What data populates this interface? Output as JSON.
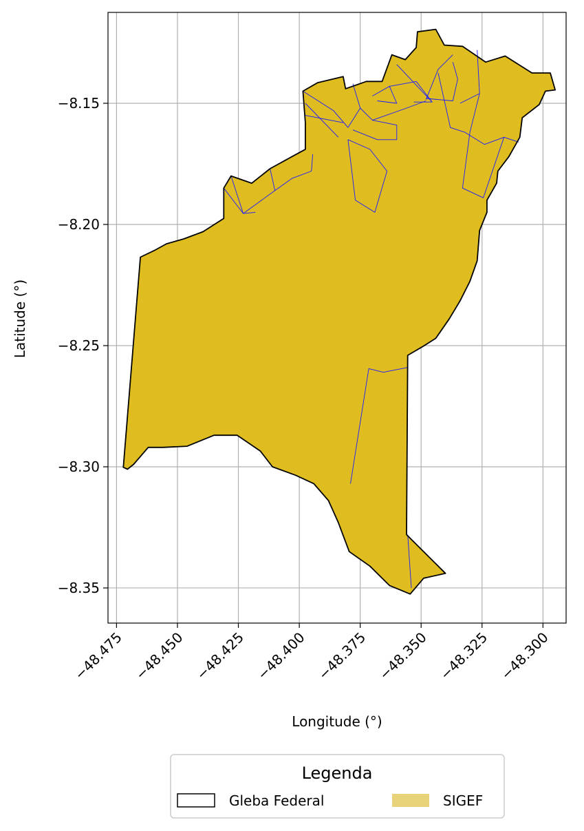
{
  "axes": {
    "xlabel": "Longitude (°)",
    "ylabel": "Latitude (°)",
    "xlim": [
      -48.4785,
      -48.2905
    ],
    "ylim": [
      -8.3645,
      -8.1125
    ],
    "xticks": [
      -48.475,
      -48.45,
      -48.425,
      -48.4,
      -48.375,
      -48.35,
      -48.325,
      -48.3
    ],
    "xtick_labels": [
      "−48.475",
      "−48.450",
      "−48.425",
      "−48.400",
      "−48.375",
      "−48.350",
      "−48.325",
      "−48.300"
    ],
    "yticks": [
      -8.15,
      -8.2,
      -8.25,
      -8.3,
      -8.35
    ],
    "ytick_labels": [
      "−8.15",
      "−8.20",
      "−8.25",
      "−8.30",
      "−8.35"
    ],
    "grid": true
  },
  "legend": {
    "title": "Legenda",
    "placement": "bottom-center",
    "entries": [
      {
        "label": "Gleba Federal",
        "style": "outline",
        "color": "#000000"
      },
      {
        "label": "SIGEF",
        "style": "fill",
        "color": "#e8d27a"
      }
    ]
  },
  "colors": {
    "sigef_fill": "#dfbd20",
    "parcel_lines": "#1a1aff",
    "gleba_outline": "#000000",
    "grid": "#b0b0b0"
  },
  "map_data": {
    "gleba_outline": [
      [
        -48.4652,
        -8.2135
      ],
      [
        -48.459,
        -8.2105
      ],
      [
        -48.4545,
        -8.208
      ],
      [
        -48.4475,
        -8.206
      ],
      [
        -48.4395,
        -8.203
      ],
      [
        -48.431,
        -8.1975
      ],
      [
        -48.431,
        -8.185
      ],
      [
        -48.428,
        -8.18
      ],
      [
        -48.4195,
        -8.183
      ],
      [
        -48.412,
        -8.177
      ],
      [
        -48.403,
        -8.172
      ],
      [
        -48.3975,
        -8.169
      ],
      [
        -48.3975,
        -8.158
      ],
      [
        -48.3985,
        -8.145
      ],
      [
        -48.3925,
        -8.1415
      ],
      [
        -48.382,
        -8.139
      ],
      [
        -48.381,
        -8.144
      ],
      [
        -48.3725,
        -8.141
      ],
      [
        -48.366,
        -8.141
      ],
      [
        -48.362,
        -8.13
      ],
      [
        -48.3565,
        -8.132
      ],
      [
        -48.352,
        -8.127
      ],
      [
        -48.3515,
        -8.1205
      ],
      [
        -48.344,
        -8.1195
      ],
      [
        -48.3405,
        -8.126
      ],
      [
        -48.333,
        -8.1265
      ],
      [
        -48.3235,
        -8.133
      ],
      [
        -48.3155,
        -8.1305
      ],
      [
        -48.3045,
        -8.1375
      ],
      [
        -48.297,
        -8.1375
      ],
      [
        -48.295,
        -8.1445
      ],
      [
        -48.299,
        -8.145
      ],
      [
        -48.3015,
        -8.1505
      ],
      [
        -48.3085,
        -8.156
      ],
      [
        -48.3095,
        -8.164
      ],
      [
        -48.314,
        -8.172
      ],
      [
        -48.3185,
        -8.178
      ],
      [
        -48.319,
        -8.183
      ],
      [
        -48.323,
        -8.19
      ],
      [
        -48.323,
        -8.195
      ],
      [
        -48.326,
        -8.2025
      ],
      [
        -48.327,
        -8.215
      ],
      [
        -48.33,
        -8.2235
      ],
      [
        -48.334,
        -8.2315
      ],
      [
        -48.3385,
        -8.239
      ],
      [
        -48.344,
        -8.247
      ],
      [
        -48.3495,
        -8.2505
      ],
      [
        -48.3555,
        -8.254
      ],
      [
        -48.356,
        -8.328
      ],
      [
        -48.34,
        -8.344
      ],
      [
        -48.349,
        -8.346
      ],
      [
        -48.3545,
        -8.3525
      ],
      [
        -48.363,
        -8.349
      ],
      [
        -48.371,
        -8.341
      ],
      [
        -48.3795,
        -8.335
      ],
      [
        -48.384,
        -8.323
      ],
      [
        -48.388,
        -8.314
      ],
      [
        -48.394,
        -8.307
      ],
      [
        -48.4015,
        -8.3035
      ],
      [
        -48.411,
        -8.3
      ],
      [
        -48.416,
        -8.2935
      ],
      [
        -48.4255,
        -8.287
      ],
      [
        -48.435,
        -8.287
      ],
      [
        -48.446,
        -8.2915
      ],
      [
        -48.456,
        -8.292
      ],
      [
        -48.462,
        -8.292
      ],
      [
        -48.468,
        -8.299
      ],
      [
        -48.4705,
        -8.301
      ],
      [
        -48.4722,
        -8.3002
      ],
      [
        -48.4652,
        -8.2135
      ]
    ],
    "parcel_lines": [
      [
        [
          -48.428,
          -8.18
        ],
        [
          -48.423,
          -8.1955
        ],
        [
          -48.418,
          -8.195
        ]
      ],
      [
        [
          -48.431,
          -8.185
        ],
        [
          -48.423,
          -8.1955
        ]
      ],
      [
        [
          -48.423,
          -8.1955
        ],
        [
          -48.41,
          -8.186
        ],
        [
          -48.403,
          -8.181
        ],
        [
          -48.395,
          -8.178
        ]
      ],
      [
        [
          -48.412,
          -8.177
        ],
        [
          -48.41,
          -8.186
        ]
      ],
      [
        [
          -48.395,
          -8.178
        ],
        [
          -48.3945,
          -8.171
        ]
      ],
      [
        [
          -48.3985,
          -8.145
        ],
        [
          -48.386,
          -8.153
        ],
        [
          -48.38,
          -8.16
        ]
      ],
      [
        [
          -48.3975,
          -8.155
        ],
        [
          -48.382,
          -8.158
        ]
      ],
      [
        [
          -48.3975,
          -8.15
        ],
        [
          -48.384,
          -8.164
        ]
      ],
      [
        [
          -48.38,
          -8.16
        ],
        [
          -48.375,
          -8.152
        ],
        [
          -48.378,
          -8.142
        ]
      ],
      [
        [
          -48.375,
          -8.152
        ],
        [
          -48.37,
          -8.157
        ],
        [
          -48.36,
          -8.159
        ],
        [
          -48.36,
          -8.165
        ],
        [
          -48.368,
          -8.165
        ],
        [
          -48.378,
          -8.161
        ]
      ],
      [
        [
          -48.37,
          -8.147
        ],
        [
          -48.363,
          -8.143
        ],
        [
          -48.36,
          -8.15
        ],
        [
          -48.368,
          -8.149
        ]
      ],
      [
        [
          -48.363,
          -8.143
        ],
        [
          -48.352,
          -8.141
        ],
        [
          -48.3455,
          -8.1495
        ],
        [
          -48.353,
          -8.1495
        ]
      ],
      [
        [
          -48.37,
          -8.157
        ],
        [
          -48.356,
          -8.152
        ],
        [
          -48.348,
          -8.149
        ]
      ],
      [
        [
          -48.36,
          -8.134
        ],
        [
          -48.3455,
          -8.1495
        ]
      ],
      [
        [
          -48.348,
          -8.1485
        ],
        [
          -48.343,
          -8.136
        ],
        [
          -48.337,
          -8.13
        ]
      ],
      [
        [
          -48.343,
          -8.1375
        ],
        [
          -48.338,
          -8.16
        ],
        [
          -48.332,
          -8.162
        ],
        [
          -48.324,
          -8.167
        ],
        [
          -48.316,
          -8.164
        ],
        [
          -48.31,
          -8.166
        ]
      ],
      [
        [
          -48.348,
          -8.148
        ],
        [
          -48.337,
          -8.149
        ],
        [
          -48.335,
          -8.14
        ],
        [
          -48.337,
          -8.133
        ]
      ],
      [
        [
          -48.327,
          -8.128
        ],
        [
          -48.326,
          -8.146
        ],
        [
          -48.334,
          -8.15
        ]
      ],
      [
        [
          -48.326,
          -8.146
        ],
        [
          -48.33,
          -8.162
        ],
        [
          -48.333,
          -8.185
        ],
        [
          -48.3245,
          -8.189
        ]
      ],
      [
        [
          -48.316,
          -8.164
        ],
        [
          -48.3245,
          -8.189
        ]
      ],
      [
        [
          -48.38,
          -8.165
        ],
        [
          -48.377,
          -8.19
        ],
        [
          -48.369,
          -8.195
        ],
        [
          -48.364,
          -8.178
        ],
        [
          -48.371,
          -8.169
        ],
        [
          -48.38,
          -8.165
        ]
      ],
      [
        [
          -48.3715,
          -8.2595
        ],
        [
          -48.3655,
          -8.261
        ],
        [
          -48.3555,
          -8.259
        ]
      ],
      [
        [
          -48.3715,
          -8.2595
        ],
        [
          -48.379,
          -8.307
        ]
      ],
      [
        [
          -48.3555,
          -8.328
        ],
        [
          -48.354,
          -8.35
        ]
      ]
    ]
  }
}
